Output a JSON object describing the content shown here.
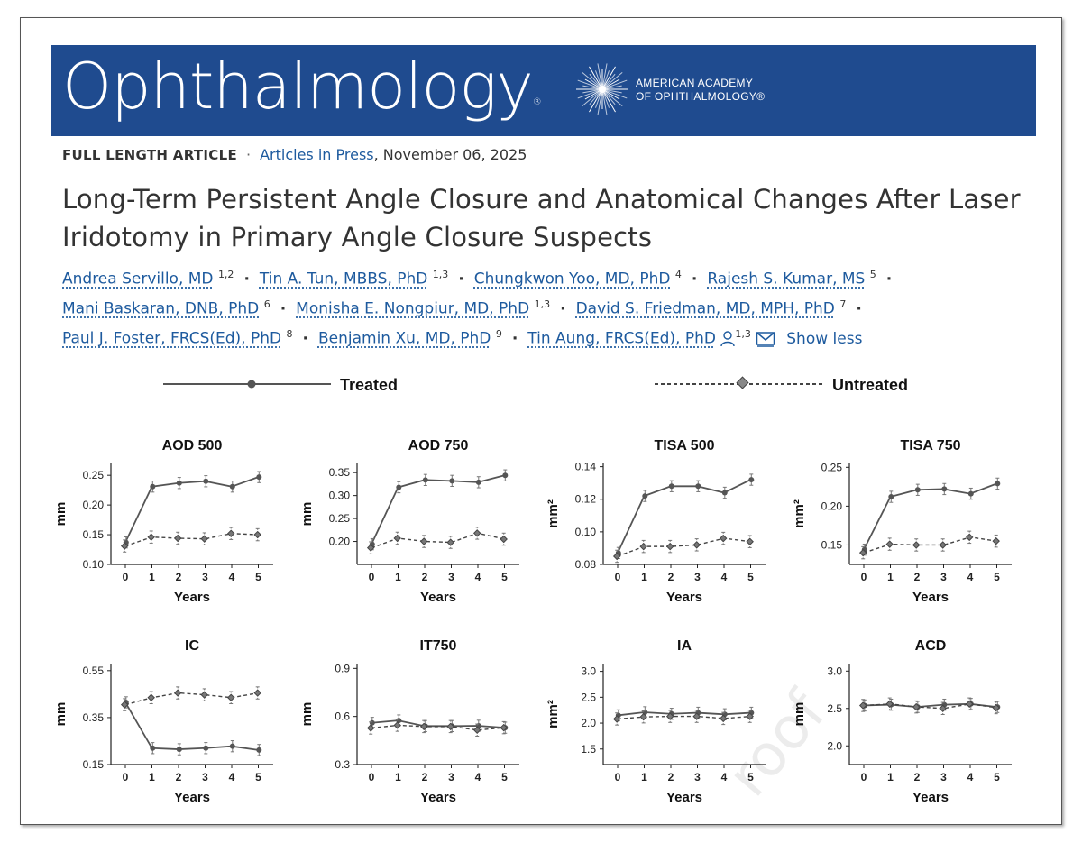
{
  "journal": {
    "name": "Ophthalmology",
    "registered": "®",
    "society_line1": "AMERICAN ACADEMY",
    "society_line2": "OF OPHTHALMOLOGY®"
  },
  "meta": {
    "article_type": "FULL LENGTH ARTICLE",
    "status_link": "Articles in Press",
    "date": ", November 06, 2025"
  },
  "title": "Long-Term Persistent Angle Closure and Anatomical Changes After Laser Iridotomy in Primary Angle Closure Suspects",
  "authors": [
    {
      "name": "Andrea Servillo, MD",
      "aff": "1,2"
    },
    {
      "name": "Tin A. Tun, MBBS, PhD",
      "aff": "1,3"
    },
    {
      "name": "Chungkwon Yoo, MD, PhD",
      "aff": "4"
    },
    {
      "name": "Rajesh S. Kumar, MS",
      "aff": "5"
    },
    {
      "name": "Mani Baskaran, DNB, PhD",
      "aff": "6"
    },
    {
      "name": "Monisha E. Nongpiur, MD, PhD",
      "aff": "1,3"
    },
    {
      "name": "David S. Friedman, MD, MPH, PhD",
      "aff": "7"
    },
    {
      "name": "Paul J. Foster, FRCS(Ed), PhD",
      "aff": "8"
    },
    {
      "name": "Benjamin Xu, MD, PhD",
      "aff": "9"
    },
    {
      "name": "Tin Aung, FRCS(Ed), PhD",
      "aff": "1,3"
    }
  ],
  "show_less": "Show less",
  "watermark": "roof",
  "legend": {
    "treated": "Treated",
    "untreated": "Untreated"
  },
  "chart_data": [
    {
      "type": "line",
      "title": "AOD 500",
      "xlabel": "Years",
      "ylabel": "mm",
      "ylim": [
        0.1,
        0.27
      ],
      "yticks": [
        "0.10",
        "0.15",
        "0.20",
        "0.25"
      ],
      "x": [
        0,
        1,
        2,
        3,
        4,
        5
      ],
      "series": [
        {
          "name": "Treated",
          "values": [
            0.137,
            0.231,
            0.237,
            0.24,
            0.231,
            0.247
          ]
        },
        {
          "name": "Untreated",
          "values": [
            0.131,
            0.146,
            0.144,
            0.143,
            0.152,
            0.15
          ]
        }
      ]
    },
    {
      "type": "line",
      "title": "AOD 750",
      "xlabel": "Years",
      "ylabel": "mm",
      "ylim": [
        0.15,
        0.37
      ],
      "yticks": [
        "0.20",
        "0.25",
        "0.30",
        "0.35"
      ],
      "x": [
        0,
        1,
        2,
        3,
        4,
        5
      ],
      "series": [
        {
          "name": "Treated",
          "values": [
            0.194,
            0.318,
            0.334,
            0.332,
            0.329,
            0.344
          ]
        },
        {
          "name": "Untreated",
          "values": [
            0.186,
            0.207,
            0.2,
            0.198,
            0.218,
            0.205
          ]
        }
      ]
    },
    {
      "type": "line",
      "title": "TISA 500",
      "xlabel": "Years",
      "ylabel": "mm²",
      "ylim": [
        0.08,
        0.142
      ],
      "yticks": [
        "0.08",
        "0.10",
        "0.12",
        "0.14"
      ],
      "x": [
        0,
        1,
        2,
        3,
        4,
        5
      ],
      "series": [
        {
          "name": "Treated",
          "values": [
            0.087,
            0.122,
            0.128,
            0.128,
            0.124,
            0.132
          ]
        },
        {
          "name": "Untreated",
          "values": [
            0.085,
            0.091,
            0.091,
            0.092,
            0.096,
            0.094
          ]
        }
      ]
    },
    {
      "type": "line",
      "title": "TISA 750",
      "xlabel": "Years",
      "ylabel": "mm²",
      "ylim": [
        0.125,
        0.255
      ],
      "yticks": [
        "0.15",
        "0.20",
        "0.25"
      ],
      "x": [
        0,
        1,
        2,
        3,
        4,
        5
      ],
      "series": [
        {
          "name": "Treated",
          "values": [
            0.144,
            0.212,
            0.221,
            0.222,
            0.216,
            0.229
          ]
        },
        {
          "name": "Untreated",
          "values": [
            0.14,
            0.151,
            0.15,
            0.15,
            0.16,
            0.155
          ]
        }
      ]
    },
    {
      "type": "line",
      "title": "IC",
      "xlabel": "Years",
      "ylabel": "mm",
      "ylim": [
        0.15,
        0.58
      ],
      "yticks": [
        "0.15",
        "0.35",
        "0.55"
      ],
      "x": [
        0,
        1,
        2,
        3,
        4,
        5
      ],
      "series": [
        {
          "name": "Treated",
          "values": [
            0.415,
            0.22,
            0.215,
            0.22,
            0.228,
            0.212
          ]
        },
        {
          "name": "Untreated",
          "values": [
            0.405,
            0.435,
            0.455,
            0.447,
            0.435,
            0.455
          ]
        }
      ]
    },
    {
      "type": "line",
      "title": "IT750",
      "xlabel": "Years",
      "ylabel": "mm",
      "ylim": [
        0.3,
        0.93
      ],
      "yticks": [
        "0.3",
        "0.6",
        "0.9"
      ],
      "x": [
        0,
        1,
        2,
        3,
        4,
        5
      ],
      "series": [
        {
          "name": "Treated",
          "values": [
            0.56,
            0.575,
            0.54,
            0.54,
            0.542,
            0.53
          ]
        },
        {
          "name": "Untreated",
          "values": [
            0.528,
            0.545,
            0.537,
            0.537,
            0.515,
            0.53
          ]
        }
      ]
    },
    {
      "type": "line",
      "title": "IA",
      "xlabel": "Years",
      "ylabel": "mm²",
      "ylim": [
        1.2,
        3.15
      ],
      "yticks": [
        "1.5",
        "2.0",
        "2.5",
        "3.0"
      ],
      "x": [
        0,
        1,
        2,
        3,
        4,
        5
      ],
      "series": [
        {
          "name": "Treated",
          "values": [
            2.15,
            2.21,
            2.18,
            2.2,
            2.17,
            2.2
          ]
        },
        {
          "name": "Untreated",
          "values": [
            2.08,
            2.12,
            2.13,
            2.13,
            2.09,
            2.13
          ]
        }
      ]
    },
    {
      "type": "line",
      "title": "ACD",
      "xlabel": "Years",
      "ylabel": "mm",
      "ylim": [
        1.75,
        3.1
      ],
      "yticks": [
        "2.0",
        "2.5",
        "3.0"
      ],
      "x": [
        0,
        1,
        2,
        3,
        4,
        5
      ],
      "series": [
        {
          "name": "Treated",
          "values": [
            2.54,
            2.55,
            2.52,
            2.55,
            2.56,
            2.52
          ]
        },
        {
          "name": "Untreated",
          "values": [
            2.54,
            2.56,
            2.52,
            2.5,
            2.56,
            2.51
          ]
        }
      ]
    }
  ]
}
